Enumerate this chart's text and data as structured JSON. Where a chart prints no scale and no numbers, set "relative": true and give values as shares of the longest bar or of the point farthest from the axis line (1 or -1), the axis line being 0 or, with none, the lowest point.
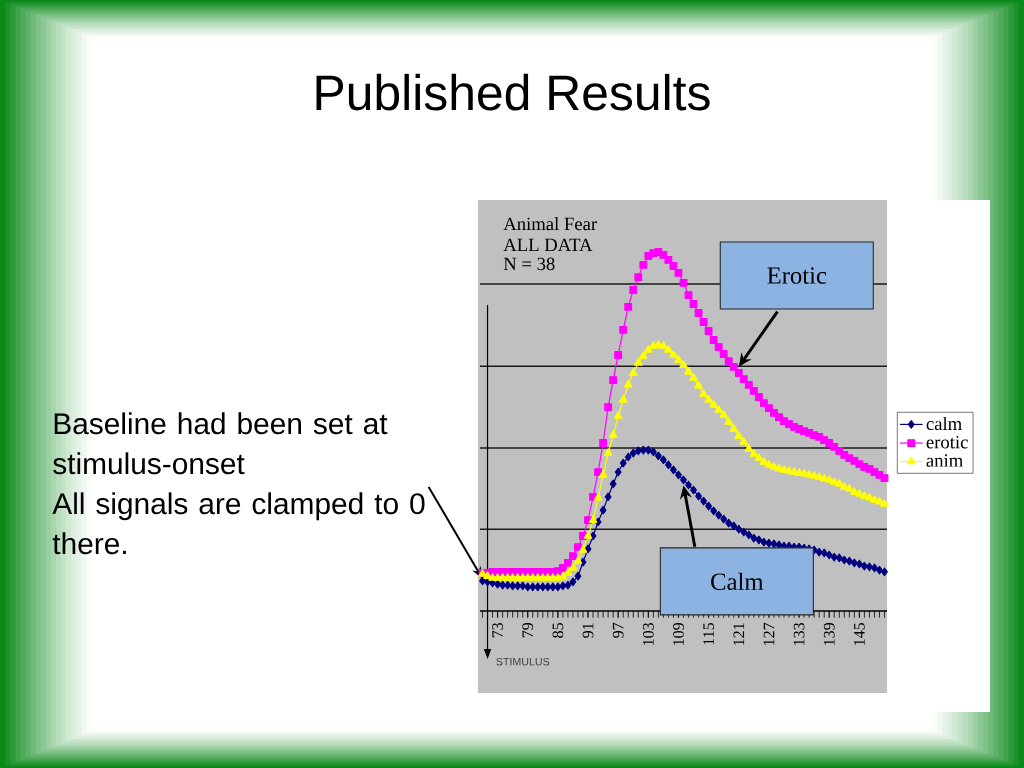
{
  "chart_data": {
    "type": "line",
    "title": "Published Results",
    "annotations": [
      "Animal Fear",
      "ALL DATA",
      "N = 38",
      "Baseline had been set at stimulus-onset",
      {
        "text": "All signals are clamped to 0 there.",
        "x": 70,
        "y": 0.09
      },
      {
        "text": "Erotic",
        "x": 121,
        "y": 0.68
      },
      {
        "text": "Calm",
        "x": 110,
        "y": 0.35
      }
    ],
    "x": [
      70,
      71,
      72,
      73,
      74,
      75,
      76,
      77,
      78,
      79,
      80,
      81,
      82,
      83,
      84,
      85,
      86,
      87,
      88,
      89,
      90,
      91,
      92,
      93,
      94,
      95,
      96,
      97,
      98,
      99,
      100,
      101,
      102,
      103,
      104,
      105,
      106,
      107,
      108,
      109,
      110,
      111,
      112,
      113,
      114,
      115,
      116,
      117,
      118,
      119,
      120,
      121,
      122,
      123,
      124,
      125,
      126,
      127,
      128,
      129,
      130,
      131,
      132,
      133,
      134,
      135,
      136,
      137,
      138,
      139,
      140,
      141,
      142,
      143,
      144,
      145,
      146,
      147,
      148,
      149,
      150
    ],
    "xlim": [
      69.5,
      150.5
    ],
    "xticks": [
      73,
      79,
      85,
      91,
      97,
      103,
      109,
      115,
      121,
      127,
      133,
      139,
      145
    ],
    "relative": true,
    "series": [
      {
        "name": "calm",
        "color": "#000080",
        "marker": "diamond",
        "values": [
          0.084,
          0.081,
          0.078,
          0.075,
          0.072,
          0.072,
          0.07,
          0.07,
          0.07,
          0.067,
          0.067,
          0.067,
          0.067,
          0.067,
          0.067,
          0.067,
          0.07,
          0.072,
          0.081,
          0.097,
          0.136,
          0.173,
          0.209,
          0.248,
          0.281,
          0.318,
          0.354,
          0.387,
          0.412,
          0.429,
          0.44,
          0.446,
          0.448,
          0.448,
          0.443,
          0.432,
          0.421,
          0.407,
          0.393,
          0.379,
          0.365,
          0.351,
          0.337,
          0.32,
          0.306,
          0.292,
          0.279,
          0.267,
          0.256,
          0.245,
          0.237,
          0.228,
          0.22,
          0.212,
          0.203,
          0.198,
          0.192,
          0.189,
          0.187,
          0.184,
          0.181,
          0.181,
          0.178,
          0.178,
          0.175,
          0.173,
          0.17,
          0.164,
          0.162,
          0.156,
          0.15,
          0.148,
          0.142,
          0.139,
          0.134,
          0.131,
          0.125,
          0.123,
          0.12,
          0.114,
          0.109
        ]
      },
      {
        "name": "erotic",
        "color": "#ff00ff",
        "marker": "square",
        "values": [
          0.106,
          0.106,
          0.109,
          0.109,
          0.109,
          0.109,
          0.109,
          0.109,
          0.109,
          0.109,
          0.109,
          0.109,
          0.109,
          0.109,
          0.109,
          0.111,
          0.12,
          0.134,
          0.153,
          0.178,
          0.209,
          0.253,
          0.318,
          0.387,
          0.468,
          0.568,
          0.643,
          0.713,
          0.783,
          0.847,
          0.894,
          0.93,
          0.964,
          0.989,
          0.997,
          1.0,
          0.992,
          0.978,
          0.961,
          0.942,
          0.914,
          0.88,
          0.855,
          0.83,
          0.805,
          0.78,
          0.755,
          0.735,
          0.716,
          0.696,
          0.68,
          0.663,
          0.646,
          0.63,
          0.613,
          0.596,
          0.579,
          0.565,
          0.552,
          0.54,
          0.529,
          0.521,
          0.513,
          0.507,
          0.501,
          0.496,
          0.49,
          0.485,
          0.476,
          0.468,
          0.457,
          0.446,
          0.435,
          0.426,
          0.418,
          0.409,
          0.401,
          0.396,
          0.387,
          0.379,
          0.37
        ]
      },
      {
        "name": "anim",
        "color": "#ffff00",
        "marker": "triangle",
        "values": [
          0.103,
          0.097,
          0.092,
          0.092,
          0.092,
          0.092,
          0.092,
          0.092,
          0.092,
          0.092,
          0.092,
          0.092,
          0.092,
          0.092,
          0.092,
          0.092,
          0.095,
          0.106,
          0.12,
          0.139,
          0.17,
          0.209,
          0.253,
          0.315,
          0.379,
          0.44,
          0.49,
          0.543,
          0.588,
          0.63,
          0.663,
          0.691,
          0.71,
          0.727,
          0.738,
          0.741,
          0.738,
          0.727,
          0.713,
          0.699,
          0.685,
          0.666,
          0.649,
          0.627,
          0.604,
          0.588,
          0.574,
          0.56,
          0.546,
          0.526,
          0.507,
          0.487,
          0.471,
          0.451,
          0.437,
          0.426,
          0.415,
          0.407,
          0.401,
          0.396,
          0.393,
          0.39,
          0.387,
          0.384,
          0.382,
          0.379,
          0.376,
          0.373,
          0.368,
          0.365,
          0.359,
          0.354,
          0.345,
          0.34,
          0.331,
          0.326,
          0.32,
          0.315,
          0.309,
          0.304,
          0.298
        ]
      }
    ],
    "ref_lines": [
      {
        "axis": "y",
        "value": 0.228,
        "color": "#1a1a1a"
      },
      {
        "axis": "y",
        "value": 0.454,
        "color": "#1a1a1a"
      },
      {
        "axis": "y",
        "value": 0.682,
        "color": "#1a1a1a"
      },
      {
        "axis": "y",
        "value": 0.911,
        "color": "#1a1a1a"
      },
      {
        "axis": "x",
        "value": 71,
        "label": "STIMULUS",
        "color": "#000000"
      }
    ],
    "legend": "right"
  }
}
